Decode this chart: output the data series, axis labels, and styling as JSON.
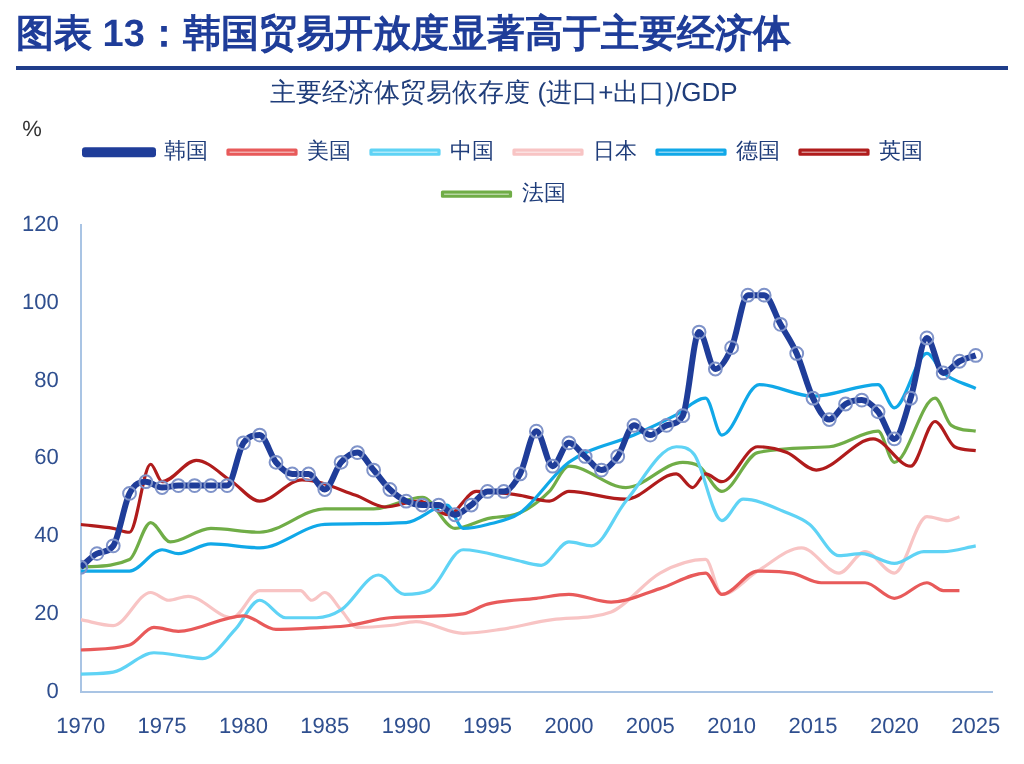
{
  "chart_data": {
    "type": "line",
    "title": "图表 13：韩国贸易开放度显著高于主要经济体",
    "subtitle": "主要经济体贸易依存度 (进口+出口)/GDP",
    "ylabel": "%",
    "xlim": [
      1970,
      2026
    ],
    "xticks": [
      1970,
      1975,
      1980,
      1985,
      1990,
      1995,
      2000,
      2005,
      2010,
      2015,
      2020,
      2025
    ],
    "ylim": [
      0,
      120
    ],
    "yticks": [
      0,
      20,
      40,
      60,
      80,
      100,
      120
    ],
    "grid": false,
    "legend": "top",
    "marker": "none",
    "line_style": "solid",
    "series": [
      {
        "name": "韩国",
        "color": "#1f3d99",
        "marker": "circle",
        "x": [
          1970,
          1971,
          1972,
          1973,
          1974,
          1975,
          1976,
          1977,
          1978,
          1979,
          1980,
          1981,
          1982,
          1983,
          1984,
          1985,
          1986,
          1987,
          1988,
          1989,
          1990,
          1991,
          1992,
          1993,
          1994,
          1995,
          1996,
          1997,
          1998,
          1999,
          2000,
          2001,
          2002,
          2003,
          2004,
          2005,
          2006,
          2007,
          2008,
          2009,
          2010,
          2011,
          2012,
          2013,
          2014,
          2015,
          2016,
          2017,
          2018,
          2019,
          2020,
          2021,
          2022,
          2023,
          2024,
          2025
        ],
        "values": [
          32,
          35.5,
          37.5,
          51,
          54,
          52.5,
          53,
          53,
          53,
          53,
          64,
          66,
          59,
          56,
          56,
          52,
          59,
          61.5,
          57,
          52,
          49,
          48,
          48,
          45.5,
          48,
          51.5,
          51.5,
          56,
          67,
          58,
          64,
          60.5,
          57,
          60.5,
          68.5,
          66,
          68.5,
          71,
          92.5,
          83,
          88.5,
          102,
          102,
          94.5,
          87,
          75.5,
          70,
          74,
          75,
          72,
          65,
          75.5,
          91,
          82,
          85,
          86.5
        ]
      },
      {
        "name": "美国",
        "color": "#e85a5a",
        "x": [
          1970,
          1973,
          1974.5,
          1976,
          1980,
          1982,
          1985,
          1986.5,
          1989,
          1993.5,
          1995,
          1998,
          2000,
          2002.6,
          2005.6,
          2008.4,
          2009.4,
          2011.6,
          2013.7,
          2015.5,
          2018.2,
          2020,
          2022,
          2023,
          2024
        ],
        "values": [
          10.7,
          12,
          16.5,
          15.5,
          19.5,
          16,
          16.5,
          17,
          19,
          20,
          22.5,
          24,
          25,
          23,
          26.5,
          30.5,
          25,
          31,
          30.5,
          28,
          28,
          24,
          28,
          26,
          26
        ]
      },
      {
        "name": "中国",
        "color": "#5fd3f5",
        "x": [
          1970,
          1972,
          1974.5,
          1976.5,
          1977.5,
          1979.5,
          1981,
          1982.6,
          1984.5,
          1986,
          1988.3,
          1989.9,
          1991.4,
          1993.5,
          1996.6,
          1998.3,
          2000,
          2001.4,
          2003.5,
          2006.6,
          2007.7,
          2009.4,
          2010.7,
          2013.4,
          2014.8,
          2016.6,
          2018,
          2020,
          2021.8,
          2023,
          2025
        ],
        "values": [
          4.5,
          5,
          10,
          9,
          8.5,
          16,
          23.5,
          19,
          19,
          21,
          30,
          25,
          26,
          36.5,
          34,
          32.5,
          38.5,
          37.5,
          49,
          63,
          61,
          44,
          49.5,
          46,
          43,
          35,
          35.5,
          33,
          36,
          36,
          37.5
        ]
      },
      {
        "name": "日本",
        "color": "#f8c4c4",
        "x": [
          1970,
          1972,
          1974.3,
          1975.4,
          1976.6,
          1979.3,
          1981,
          1983.5,
          1984.2,
          1985,
          1986,
          1987,
          1989,
          1990.6,
          1993.5,
          1995.8,
          1999,
          2002.6,
          2005.6,
          2008.4,
          2009.4,
          2011.6,
          2014.3,
          2016.6,
          2018.2,
          2020,
          2022,
          2023.3,
          2024
        ],
        "values": [
          18.5,
          17,
          25.5,
          23.5,
          24.5,
          19,
          26,
          26,
          23.5,
          25.5,
          21,
          16.5,
          17,
          18,
          15,
          16,
          18.5,
          20.5,
          30.5,
          34,
          25,
          31,
          37,
          30.5,
          36,
          30.5,
          45,
          44,
          45
        ]
      },
      {
        "name": "德国",
        "color": "#10a8e8",
        "x": [
          1970,
          1973,
          1975,
          1976,
          1978,
          1981,
          1985,
          1990,
          1992.5,
          1993.5,
          1995,
          1997,
          2000,
          2004,
          2006.5,
          2008.4,
          2009.4,
          2011.7,
          2015,
          2019,
          2020,
          2022,
          2023,
          2025
        ],
        "values": [
          31,
          31,
          36.5,
          35.5,
          38,
          37,
          43,
          43.5,
          48,
          42,
          43,
          46,
          59,
          66,
          71,
          75.5,
          66,
          79,
          76,
          79,
          73,
          87,
          82,
          78
        ]
      },
      {
        "name": "英国",
        "color": "#b01c1c",
        "x": [
          1970,
          1972,
          1973,
          1974.3,
          1975,
          1977.1,
          1979.3,
          1981,
          1983.6,
          1986.9,
          1988.7,
          1990.8,
          1992.6,
          1994.3,
          1997,
          1998.8,
          2000,
          2003.5,
          2006.6,
          2007.6,
          2008.4,
          2009.4,
          2011.6,
          2013.4,
          2015.2,
          2018.7,
          2021,
          2022.5,
          2023.7,
          2025
        ],
        "values": [
          43,
          42,
          41,
          58.5,
          54,
          59.5,
          54,
          49,
          54.5,
          50.5,
          47.5,
          49,
          45.5,
          51.5,
          50.5,
          49,
          51.5,
          49.5,
          56,
          52.5,
          56,
          54,
          63,
          61.5,
          57,
          65,
          58,
          69.5,
          63,
          62
        ]
      },
      {
        "name": "法国",
        "color": "#70ad47",
        "x": [
          1970,
          1973,
          1974.3,
          1975.5,
          1978,
          1981,
          1985,
          1988,
          1991,
          1993,
          1995,
          1997,
          1998.8,
          2000,
          2003.5,
          2007,
          2008,
          2009.4,
          2011.6,
          2016,
          2019,
          2020,
          2022.5,
          2023.5,
          2025
        ],
        "values": [
          32,
          34,
          43.5,
          38.5,
          42,
          41,
          47,
          47,
          50,
          42,
          44.5,
          46,
          51.5,
          58,
          52.5,
          59,
          58,
          51.5,
          61.5,
          63,
          67,
          59,
          75.5,
          68.5,
          67
        ]
      }
    ]
  }
}
